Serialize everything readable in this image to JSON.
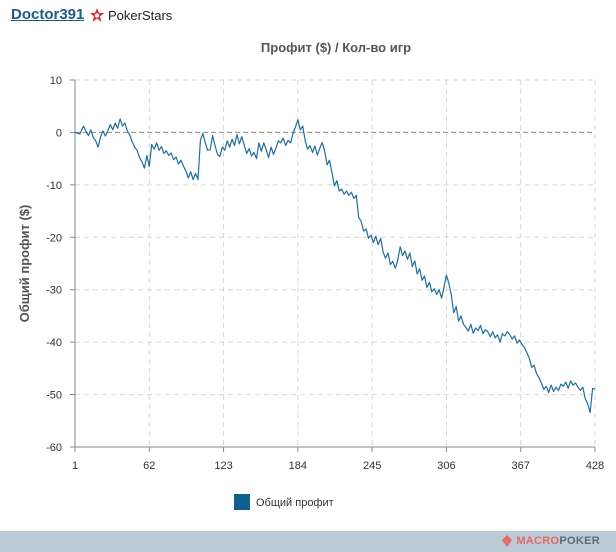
{
  "header": {
    "player_name": "Doctor391",
    "room_name": "PokerStars",
    "room_icon": "pokerstars-logo-icon"
  },
  "footer": {
    "brand_prefix": "MACRO",
    "brand_suffix": "POKER",
    "brand_icon": "macropoker-logo-icon"
  },
  "colors": {
    "line": "#1f6e9c",
    "legend_swatch": "#116190",
    "grid": "#d6d6d6",
    "axis": "#888888",
    "footer": "#bccad6"
  },
  "chart_data": {
    "type": "line",
    "title": "Профит ($) / Кол-во игр",
    "xlabel": "",
    "ylabel": "Общий профит ($)",
    "xlim": [
      1,
      428
    ],
    "ylim": [
      -60,
      10
    ],
    "x_ticks": [
      1,
      62,
      123,
      184,
      245,
      306,
      367,
      428
    ],
    "y_ticks": [
      10,
      0,
      -10,
      -20,
      -30,
      -40,
      -50,
      -60
    ],
    "grid": true,
    "zero_line": true,
    "legend_position": "bottom-left",
    "series": [
      {
        "name": "Общий профит",
        "points": [
          [
            1,
            0
          ],
          [
            5,
            -0.3
          ],
          [
            8,
            1.2
          ],
          [
            10,
            0.2
          ],
          [
            12,
            -0.6
          ],
          [
            14,
            0.5
          ],
          [
            16,
            -1
          ],
          [
            18,
            -1.6
          ],
          [
            20,
            -2.8
          ],
          [
            22,
            -0.8
          ],
          [
            24,
            0.3
          ],
          [
            26,
            -0.7
          ],
          [
            28,
            0.4
          ],
          [
            30,
            1.5
          ],
          [
            32,
            0.5
          ],
          [
            34,
            1.8
          ],
          [
            36,
            0.8
          ],
          [
            38,
            2.6
          ],
          [
            40,
            1.2
          ],
          [
            42,
            1.8
          ],
          [
            44,
            0.3
          ],
          [
            46,
            -0.5
          ],
          [
            48,
            -1.8
          ],
          [
            50,
            -2.8
          ],
          [
            52,
            -3.4
          ],
          [
            54,
            -4.8
          ],
          [
            56,
            -5.6
          ],
          [
            58,
            -6.8
          ],
          [
            60,
            -4.4
          ],
          [
            62,
            -6.5
          ],
          [
            64,
            -2.3
          ],
          [
            66,
            -3.2
          ],
          [
            68,
            -2.0
          ],
          [
            70,
            -3.4
          ],
          [
            72,
            -2.7
          ],
          [
            74,
            -4.0
          ],
          [
            76,
            -3.5
          ],
          [
            78,
            -4.4
          ],
          [
            80,
            -3.9
          ],
          [
            82,
            -5.2
          ],
          [
            84,
            -4.7
          ],
          [
            86,
            -6.0
          ],
          [
            88,
            -5.3
          ],
          [
            90,
            -6.4
          ],
          [
            92,
            -7.3
          ],
          [
            94,
            -8.7
          ],
          [
            96,
            -7.5
          ],
          [
            98,
            -9.0
          ],
          [
            100,
            -7.8
          ],
          [
            102,
            -9.0
          ],
          [
            104,
            -1.5
          ],
          [
            106,
            -0.2
          ],
          [
            108,
            -2.0
          ],
          [
            110,
            -3.4
          ],
          [
            112,
            -3.3
          ],
          [
            114,
            -0.6
          ],
          [
            116,
            -2.5
          ],
          [
            118,
            -4.2
          ],
          [
            120,
            -4.6
          ],
          [
            122,
            -2.8
          ],
          [
            124,
            -3.4
          ],
          [
            126,
            -1.6
          ],
          [
            128,
            -2.8
          ],
          [
            130,
            -1.3
          ],
          [
            132,
            -2.5
          ],
          [
            134,
            -0.4
          ],
          [
            136,
            -2.2
          ],
          [
            138,
            -0.8
          ],
          [
            140,
            -2.5
          ],
          [
            142,
            -4.0
          ],
          [
            144,
            -3.1
          ],
          [
            146,
            -4.5
          ],
          [
            148,
            -3.8
          ],
          [
            150,
            -5.0
          ],
          [
            152,
            -2.0
          ],
          [
            154,
            -3.6
          ],
          [
            156,
            -2.0
          ],
          [
            158,
            -3.3
          ],
          [
            160,
            -4.8
          ],
          [
            162,
            -2.8
          ],
          [
            164,
            -4.2
          ],
          [
            166,
            -3.0
          ],
          [
            168,
            -1.6
          ],
          [
            170,
            -2.0
          ],
          [
            172,
            -1.1
          ],
          [
            174,
            -2.5
          ],
          [
            176,
            -1.5
          ],
          [
            178,
            -2.0
          ],
          [
            180,
            -0.2
          ],
          [
            182,
            1.0
          ],
          [
            184,
            2.4
          ],
          [
            186,
            0.5
          ],
          [
            188,
            1.2
          ],
          [
            190,
            -1.6
          ],
          [
            192,
            -3.2
          ],
          [
            194,
            -2.5
          ],
          [
            196,
            -3.8
          ],
          [
            198,
            -2.6
          ],
          [
            200,
            -4.3
          ],
          [
            202,
            -3.0
          ],
          [
            204,
            -1.9
          ],
          [
            206,
            -3.5
          ],
          [
            208,
            -6.2
          ],
          [
            210,
            -5.3
          ],
          [
            212,
            -7.7
          ],
          [
            214,
            -10.2
          ],
          [
            216,
            -9.2
          ],
          [
            218,
            -11.2
          ],
          [
            220,
            -10.8
          ],
          [
            222,
            -11.8
          ],
          [
            224,
            -11.2
          ],
          [
            226,
            -12.0
          ],
          [
            228,
            -11.4
          ],
          [
            230,
            -12.6
          ],
          [
            232,
            -12.0
          ],
          [
            234,
            -16.2
          ],
          [
            236,
            -17.0
          ],
          [
            238,
            -18.8
          ],
          [
            240,
            -18.4
          ],
          [
            242,
            -20.2
          ],
          [
            244,
            -19.6
          ],
          [
            246,
            -21.0
          ],
          [
            248,
            -19.8
          ],
          [
            250,
            -21.4
          ],
          [
            252,
            -20.2
          ],
          [
            254,
            -22.8
          ],
          [
            256,
            -24.0
          ],
          [
            258,
            -23.0
          ],
          [
            260,
            -25.2
          ],
          [
            262,
            -24.6
          ],
          [
            264,
            -25.9
          ],
          [
            266,
            -24.4
          ],
          [
            268,
            -21.8
          ],
          [
            270,
            -23.5
          ],
          [
            272,
            -22.6
          ],
          [
            274,
            -24.2
          ],
          [
            276,
            -23.0
          ],
          [
            278,
            -25.6
          ],
          [
            280,
            -24.5
          ],
          [
            282,
            -27.0
          ],
          [
            284,
            -26.0
          ],
          [
            286,
            -28.2
          ],
          [
            288,
            -27.4
          ],
          [
            290,
            -29.6
          ],
          [
            292,
            -28.6
          ],
          [
            294,
            -30.4
          ],
          [
            296,
            -29.8
          ],
          [
            298,
            -30.9
          ],
          [
            300,
            -30.0
          ],
          [
            302,
            -31.6
          ],
          [
            304,
            -29.5
          ],
          [
            306,
            -27.2
          ],
          [
            308,
            -28.8
          ],
          [
            310,
            -31.0
          ],
          [
            312,
            -34.4
          ],
          [
            314,
            -33.2
          ],
          [
            316,
            -36.0
          ],
          [
            318,
            -35.0
          ],
          [
            320,
            -36.6
          ],
          [
            322,
            -37.2
          ],
          [
            324,
            -37.9
          ],
          [
            326,
            -36.6
          ],
          [
            328,
            -38.3
          ],
          [
            330,
            -37.3
          ],
          [
            332,
            -37.8
          ],
          [
            334,
            -36.8
          ],
          [
            336,
            -38.4
          ],
          [
            338,
            -37.6
          ],
          [
            340,
            -38.0
          ],
          [
            342,
            -39.0
          ],
          [
            344,
            -38.0
          ],
          [
            346,
            -39.2
          ],
          [
            348,
            -38.6
          ],
          [
            350,
            -40.0
          ],
          [
            352,
            -38.4
          ],
          [
            354,
            -38.8
          ],
          [
            356,
            -38.0
          ],
          [
            358,
            -38.6
          ],
          [
            360,
            -39.4
          ],
          [
            362,
            -38.8
          ],
          [
            364,
            -40.2
          ],
          [
            366,
            -39.6
          ],
          [
            368,
            -40.4
          ],
          [
            370,
            -41.0
          ],
          [
            372,
            -42.0
          ],
          [
            374,
            -43.0
          ],
          [
            376,
            -44.8
          ],
          [
            378,
            -44.4
          ],
          [
            380,
            -46.0
          ],
          [
            382,
            -46.8
          ],
          [
            384,
            -47.8
          ],
          [
            386,
            -49.0
          ],
          [
            388,
            -48.4
          ],
          [
            390,
            -49.6
          ],
          [
            392,
            -48.2
          ],
          [
            394,
            -49.4
          ],
          [
            396,
            -48.6
          ],
          [
            398,
            -49.2
          ],
          [
            400,
            -48.0
          ],
          [
            402,
            -48.4
          ],
          [
            404,
            -47.6
          ],
          [
            406,
            -48.8
          ],
          [
            408,
            -47.4
          ],
          [
            410,
            -48.2
          ],
          [
            412,
            -47.8
          ],
          [
            414,
            -48.6
          ],
          [
            416,
            -49.2
          ],
          [
            418,
            -48.6
          ],
          [
            420,
            -50.8
          ],
          [
            422,
            -51.8
          ],
          [
            424,
            -53.4
          ],
          [
            426,
            -48.8
          ],
          [
            428,
            -49.0
          ]
        ]
      }
    ]
  }
}
